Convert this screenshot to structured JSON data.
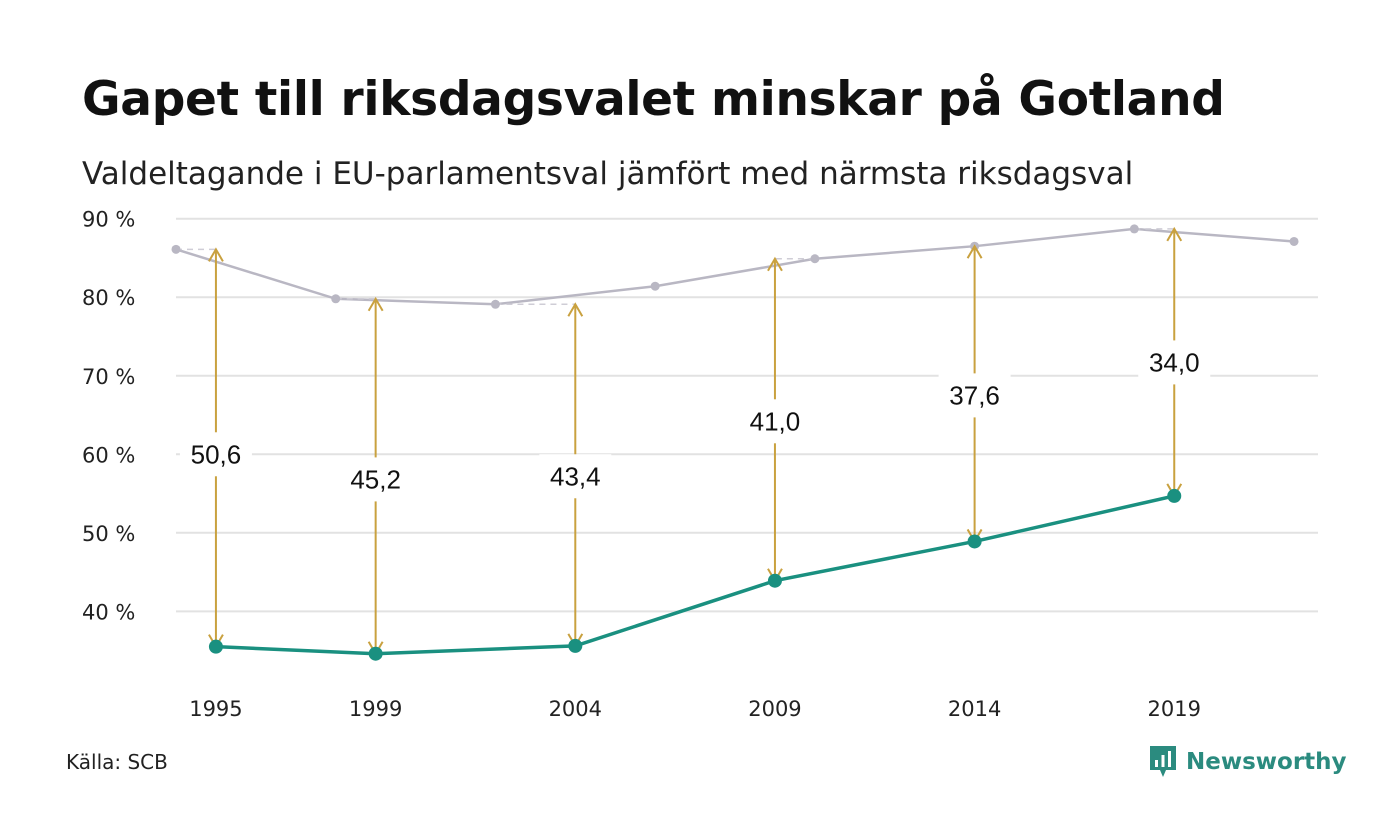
{
  "title": "Gapet till riksdagsvalet minskar på Gotland",
  "subtitle": "Valdeltagande i EU-parlamentsval jämfört med närmsta riksdagsval",
  "source": "Källa: SCB",
  "brand": {
    "name": "Newsworthy",
    "icon": "bar-chart-bubble-icon"
  },
  "colors": {
    "eu": "#1a9080",
    "riksdag": "#b9b7c3",
    "arrow": "#c9a13f",
    "grid": "#e2e2e2"
  },
  "chart_data": {
    "type": "line",
    "title": "Gapet till riksdagsvalet minskar på Gotland",
    "subtitle": "Valdeltagande i EU-parlamentsval jämfört med närmsta riksdagsval",
    "ylim": [
      31,
      92
    ],
    "yticks": [
      40,
      50,
      60,
      70,
      80,
      90
    ],
    "ytick_labels": [
      "40 %",
      "50 %",
      "60 %",
      "70 %",
      "80 %",
      "90 %"
    ],
    "xlim": [
      1994.0,
      2022.6
    ],
    "xticks": [
      1995,
      1999,
      2004,
      2009,
      2014,
      2019
    ],
    "xtick_labels": [
      "1995",
      "1999",
      "2004",
      "2009",
      "2014",
      "2019"
    ],
    "grid": true,
    "series": [
      {
        "key": "riksdag",
        "x": [
          1994.0,
          1998.0,
          2002.0,
          2006.0,
          2010.0,
          2014.0,
          2018.0,
          2022.0
        ],
        "y": [
          86.1,
          79.8,
          79.1,
          81.4,
          84.9,
          86.5,
          88.7,
          87.1
        ]
      },
      {
        "key": "eu",
        "x": [
          1995,
          1999,
          2004,
          2009,
          2014,
          2019
        ],
        "y": [
          35.5,
          34.6,
          35.6,
          43.9,
          48.9,
          54.7
        ]
      }
    ],
    "gaps": [
      {
        "x": 1995,
        "from": 35.5,
        "to": 86.1,
        "label": "50,6",
        "label_y": 60.0
      },
      {
        "x": 1999,
        "from": 34.6,
        "to": 79.8,
        "label": "45,2",
        "label_y": 56.8
      },
      {
        "x": 2004,
        "from": 35.6,
        "to": 79.1,
        "label": "43,4",
        "label_y": 57.2
      },
      {
        "x": 2009,
        "from": 43.9,
        "to": 84.9,
        "label": "41,0",
        "label_y": 64.2
      },
      {
        "x": 2014,
        "from": 48.9,
        "to": 86.5,
        "label": "37,6",
        "label_y": 67.5
      },
      {
        "x": 2019,
        "from": 54.7,
        "to": 88.7,
        "label": "34,0",
        "label_y": 71.7
      }
    ]
  }
}
